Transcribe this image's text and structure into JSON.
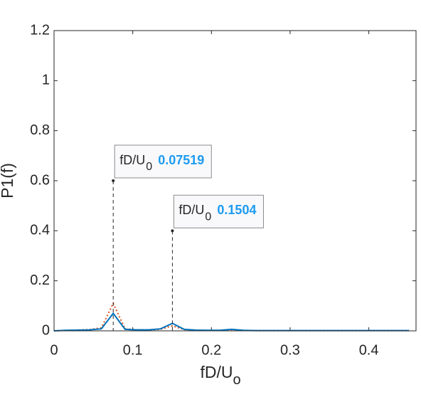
{
  "chart_data": {
    "type": "line",
    "xlabel": "fD/U",
    "xlabel_subscript": "o",
    "ylabel": "P1(f)",
    "x": [
      0,
      0.01504,
      0.03008,
      0.04511,
      0.06015,
      0.07519,
      0.09023,
      0.10526,
      0.1203,
      0.13534,
      0.1504,
      0.16541,
      0.18045,
      0.19549,
      0.21053,
      0.22556,
      0.2406,
      0.25564,
      0.27068,
      0.28571,
      0.30075,
      0.31579,
      0.33083,
      0.34586,
      0.3609,
      0.37594,
      0.39098,
      0.40602,
      0.42105,
      0.43609,
      0.45113
    ],
    "series": [
      {
        "color": "#0072bd",
        "style": "solid",
        "values": [
          0,
          0.002,
          0.003,
          0.004,
          0.008,
          0.07,
          0.006,
          0.004,
          0.004,
          0.008,
          0.03,
          0.006,
          0.003,
          0.002,
          0.002,
          0.006,
          0.002,
          0.001,
          0.001,
          0.001,
          0.001,
          0.001,
          0.001,
          0.001,
          0.001,
          0.001,
          0.001,
          0.001,
          0.001,
          0.001,
          0.001
        ]
      },
      {
        "color": "#d95319",
        "style": "dotted",
        "values": [
          0,
          0.002,
          0.003,
          0.005,
          0.012,
          0.11,
          0.008,
          0.004,
          0.004,
          0.006,
          0.02,
          0.005,
          0.003,
          0.002,
          0.002,
          0.004,
          0.002,
          0.001,
          0.001,
          0.001,
          0.001,
          0.001,
          0.001,
          0.001,
          0.001,
          0.001,
          0.001,
          0.001,
          0.001,
          0.001,
          0.001
        ]
      }
    ],
    "datatips": [
      {
        "x": 0.07519,
        "y": 0.6,
        "label": "fD/U",
        "subscript": "0"
      },
      {
        "x": 0.1504,
        "y": 0.4,
        "label": "fD/U",
        "subscript": "0"
      }
    ],
    "xlim": [
      0,
      0.46
    ],
    "xticks": [
      0,
      0.1,
      0.2,
      0.3,
      0.4
    ],
    "ylim": [
      0,
      1.2
    ],
    "yticks": [
      0,
      0.2,
      0.4,
      0.6,
      0.8,
      1,
      1.2
    ]
  }
}
